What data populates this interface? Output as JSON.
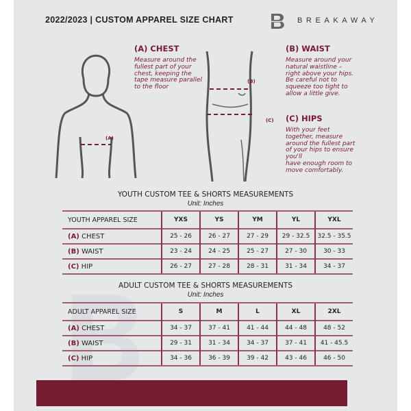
{
  "header": {
    "title": "2022/2023  |  CUSTOM APPAREL SIZE CHART",
    "brand": "BREAKAWAY",
    "logo_letter": "B"
  },
  "measures": {
    "chest": {
      "label": "(A) CHEST",
      "marker": "(A)",
      "text": [
        "Measure around the",
        "fullest part of your",
        "chest, keeping the",
        "tape measure parallel",
        "to the floor"
      ]
    },
    "waist": {
      "label": "(B) WAIST",
      "marker": "(B)",
      "text": [
        "Measure around your",
        "natural waistline –",
        "right above your hips.",
        "Be careful not to",
        "squeeze too tight to",
        "allow a little give."
      ]
    },
    "hips": {
      "label": "(C) HIPS",
      "marker": "(C)",
      "text": [
        "With your feet",
        "together, measure",
        "around the fullest part",
        "of your hips to ensure",
        "you'll",
        "have enough room to",
        "move comfortably."
      ]
    }
  },
  "youth": {
    "title": "YOUTH CUSTOM TEE & SHORTS MEASUREMENTS",
    "unit": "Unit: Inches",
    "header": "YOUTH APPAREL SIZE",
    "sizes": [
      "YXS",
      "YS",
      "YM",
      "YL",
      "YXL"
    ],
    "rows": [
      {
        "code": "(A)",
        "name": "CHEST",
        "values": [
          "25 - 26",
          "26 - 27",
          "27 - 29",
          "29 - 32.5",
          "32.5 - 35.5"
        ]
      },
      {
        "code": "(B)",
        "name": "WAIST",
        "values": [
          "23 - 24",
          "24 - 25",
          "25 - 27",
          "27 - 30",
          "30 - 33"
        ]
      },
      {
        "code": "(C)",
        "name": "HIP",
        "values": [
          "26 - 27",
          "27 - 28",
          "28 - 31",
          "31 - 34",
          "34 - 37"
        ]
      }
    ]
  },
  "adult": {
    "title": "ADULT CUSTOM TEE & SHORTS MEASUREMENTS",
    "unit": "Unit: Inches",
    "header": "ADULT APPAREL SIZE",
    "sizes": [
      "S",
      "M",
      "L",
      "XL",
      "2XL"
    ],
    "rows": [
      {
        "code": "(A)",
        "name": "CHEST",
        "values": [
          "34 - 37",
          "37 - 41",
          "41 - 44",
          "44 - 48",
          "48 - 52"
        ]
      },
      {
        "code": "(B)",
        "name": "WAIST",
        "values": [
          "29 - 31",
          "31 - 34",
          "34 - 37",
          "37 - 41",
          "41 - 45.5"
        ]
      },
      {
        "code": "(C)",
        "name": "HIP",
        "values": [
          "34 - 36",
          "36 - 39",
          "39 - 42",
          "43 - 46",
          "46 - 50"
        ]
      }
    ]
  },
  "colors": {
    "accent": "#741a31",
    "background": "#e6e7e9"
  }
}
